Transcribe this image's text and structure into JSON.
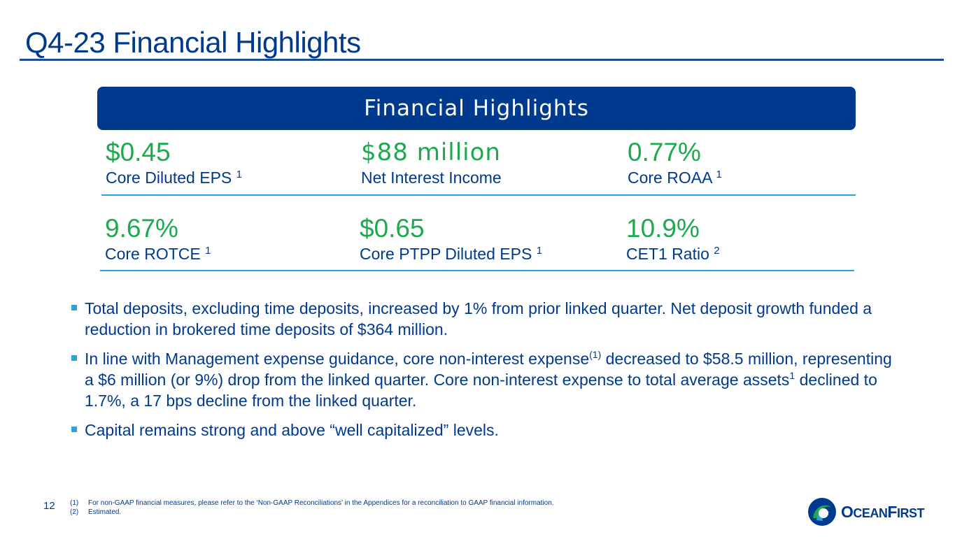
{
  "slide": {
    "title": "Q4-23 Financial Highlights",
    "page_number": "12"
  },
  "banner": {
    "label": "Financial Highlights"
  },
  "metrics": [
    {
      "value": "$0.45",
      "label": "Core Diluted EPS",
      "note": "1"
    },
    {
      "value": "$88 million",
      "label": "Net Interest Income",
      "note": ""
    },
    {
      "value": "0.77%",
      "label": "Core ROAA",
      "note": "1"
    },
    {
      "value": "9.67%",
      "label": "Core ROTCE",
      "note": "1"
    },
    {
      "value": "$0.65",
      "label": "Core PTPP Diluted EPS",
      "note": "1"
    },
    {
      "value": "10.9%",
      "label": "CET1 Ratio",
      "note": "2"
    }
  ],
  "bullets": {
    "b1": "Total deposits, excluding time deposits, increased by 1% from prior linked quarter. Net deposit growth funded a reduction in brokered time deposits of $364 million.",
    "b2_part1": "In line with Management expense guidance, core non-interest expense",
    "b2_sup1": "(1)",
    "b2_part2": " decreased to $58.5 million, representing a $6 million (or 9%) drop from the linked quarter. Core non-interest expense to total average assets",
    "b2_sup2": "1",
    "b2_part3": " declined to 1.7%, a 17 bps decline from the linked quarter.",
    "b3": "Capital remains strong and above “well capitalized” levels."
  },
  "footnotes": [
    {
      "key": "(1)",
      "text": "For non-GAAP financial measures, please refer to the ‘Non-GAAP Reconciliations’ in the Appendices for a reconciliation to GAAP financial information."
    },
    {
      "key": "(2)",
      "text": "Estimated."
    }
  ],
  "logo": {
    "part1": "O",
    "part2": "CEAN",
    "part3": "F",
    "part4": "IRST"
  },
  "colors": {
    "navy": "#003A8F",
    "green": "#1DAA4E",
    "accent": "#2BA3DC"
  }
}
